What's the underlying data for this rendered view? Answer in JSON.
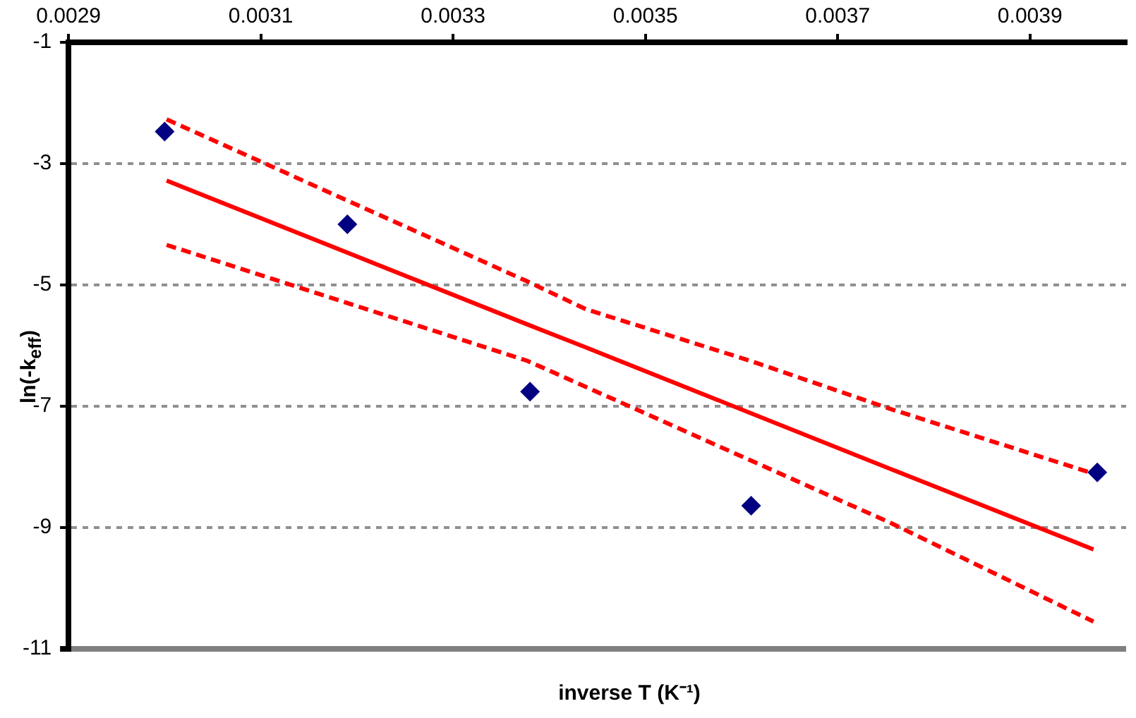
{
  "chart_data": {
    "type": "scatter",
    "xlabel": "inverse T (K⁻¹)",
    "ylabel": "ln(-k$_{eff}$)",
    "xlim": [
      0.0029,
      0.004
    ],
    "xticks": [
      0.0029,
      0.0031,
      0.0033,
      0.0035,
      0.0037,
      0.0039
    ],
    "ylim": [
      -11,
      -1
    ],
    "yticks": [
      -11,
      -9,
      -7,
      -5,
      -3,
      -1
    ],
    "grid": "y",
    "legend": false,
    "tick_labels": "xy",
    "marker": "diamond",
    "series": [
      {
        "color": "#000080",
        "x": [
          0.003,
          0.00319,
          0.00338,
          0.00361,
          0.00397
        ],
        "values": [
          -2.47,
          -4.0,
          -6.76,
          -8.64,
          -8.09
        ]
      },
      {
        "type": "line",
        "color": "#ff0000",
        "marker": "none",
        "line_style": "solid",
        "x": [
          0.003002,
          0.003377,
          0.003438,
          0.003609,
          0.003756,
          0.003966
        ],
        "values": [
          -3.28,
          -5.65,
          -6.03,
          -7.11,
          -8.04,
          -9.36
        ]
      },
      {
        "type": "line",
        "color": "#ff0000",
        "marker": "none",
        "line_style": "dashed",
        "x": [
          0.003002,
          0.003377,
          0.003438,
          0.003609,
          0.003756,
          0.003966
        ],
        "values": [
          -4.34,
          -6.25,
          -6.68,
          -7.89,
          -8.93,
          -10.55
        ]
      },
      {
        "type": "line",
        "color": "#ff0000",
        "marker": "none",
        "line_style": "dashed",
        "x": [
          0.003002,
          0.003377,
          0.003438,
          0.003609,
          0.003756,
          0.003966
        ],
        "values": [
          -2.27,
          -4.94,
          -5.4,
          -6.25,
          -7.05,
          -8.11
        ]
      }
    ]
  }
}
